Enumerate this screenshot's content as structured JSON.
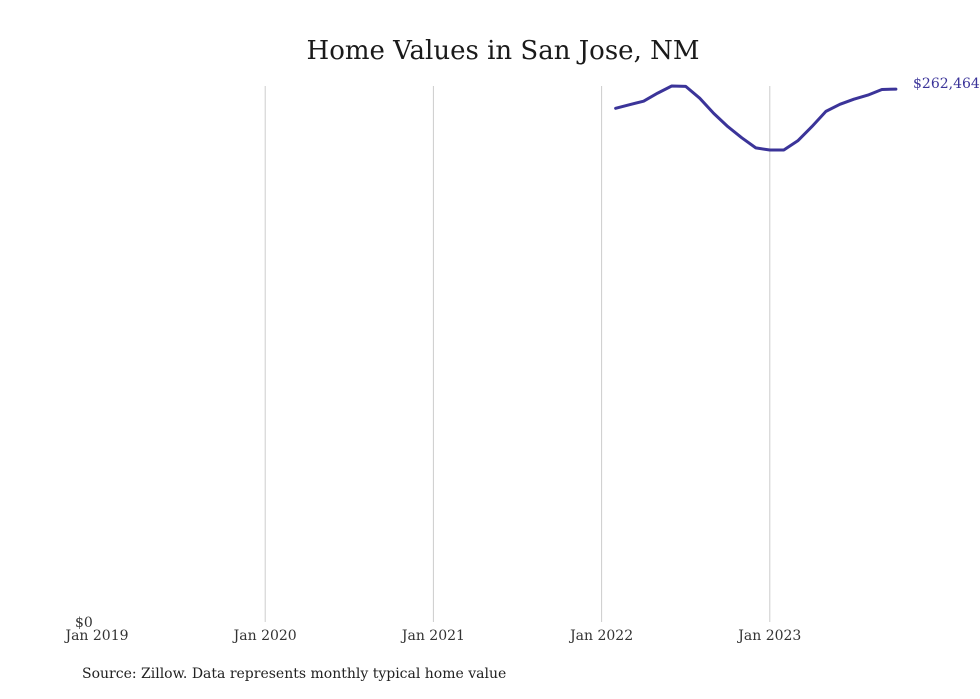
{
  "chart_data": {
    "type": "line",
    "title": "Home Values in San Jose, NM",
    "xlabel": "",
    "ylabel": "",
    "x_ticks": [
      "Jan 2019",
      "Jan 2020",
      "Jan 2021",
      "Jan 2022",
      "Jan 2023"
    ],
    "y_ticks": [
      "$0"
    ],
    "ylim": [
      0,
      264000
    ],
    "grid": "vertical",
    "line_color": "#3b3499",
    "end_label": "$262,464",
    "series": [
      {
        "values": [
          {
            "x": "2022-02",
            "y": 253000
          },
          {
            "x": "2022-03",
            "y": 254800
          },
          {
            "x": "2022-04",
            "y": 256500
          },
          {
            "x": "2022-05",
            "y": 260500
          },
          {
            "x": "2022-06",
            "y": 264000
          },
          {
            "x": "2022-07",
            "y": 263800
          },
          {
            "x": "2022-08",
            "y": 258000
          },
          {
            "x": "2022-09",
            "y": 250500
          },
          {
            "x": "2022-10",
            "y": 244000
          },
          {
            "x": "2022-11",
            "y": 238500
          },
          {
            "x": "2022-12",
            "y": 233500
          },
          {
            "x": "2023-01",
            "y": 232500
          },
          {
            "x": "2023-02",
            "y": 232500
          },
          {
            "x": "2023-03",
            "y": 237000
          },
          {
            "x": "2023-04",
            "y": 244000
          },
          {
            "x": "2023-05",
            "y": 251500
          },
          {
            "x": "2023-06",
            "y": 255000
          },
          {
            "x": "2023-07",
            "y": 257500
          },
          {
            "x": "2023-08",
            "y": 259500
          },
          {
            "x": "2023-09",
            "y": 262300
          },
          {
            "x": "2023-10",
            "y": 262464
          }
        ]
      }
    ]
  },
  "source": "Source: Zillow. Data represents monthly typical home value"
}
